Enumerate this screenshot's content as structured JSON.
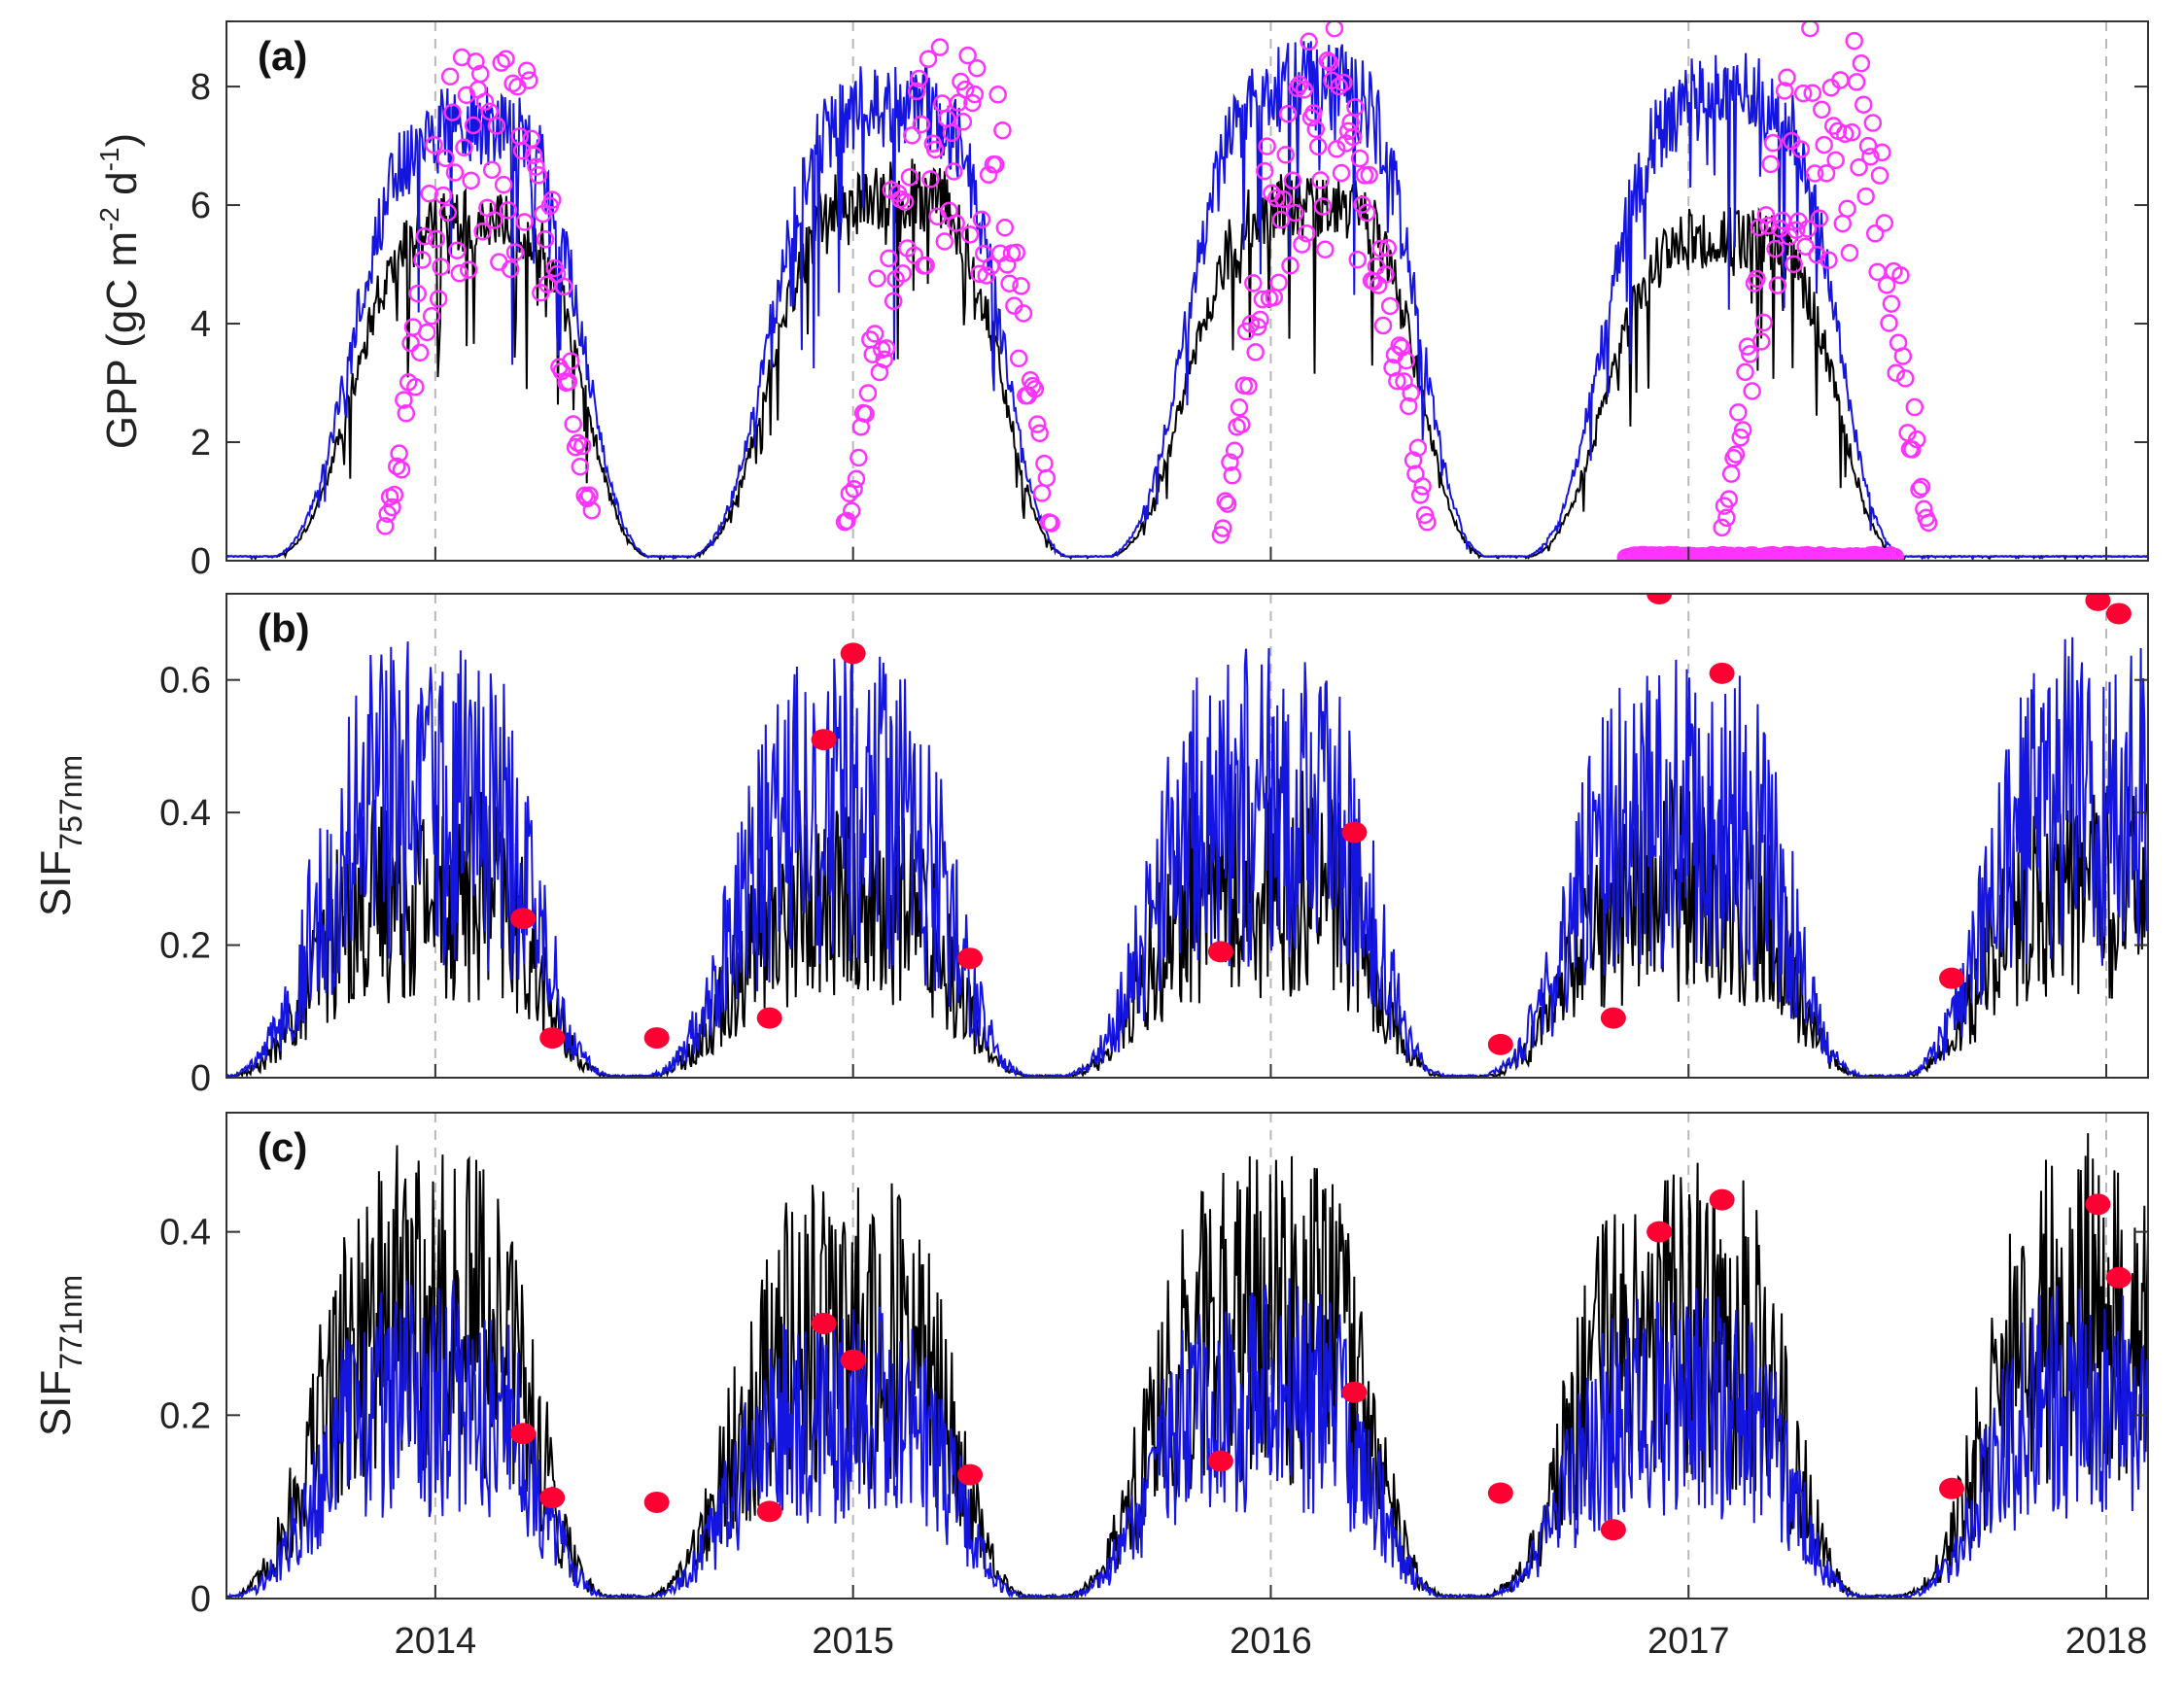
{
  "chart_data": [
    {
      "type": "line",
      "panel": "(a)",
      "ylabel": "GPP (gC m-2 d-1)",
      "ylabel_parts": {
        "base": "GPP (gC m",
        "sup1": "-2",
        "mid": " d",
        "sup2": "-1",
        "end": ")"
      },
      "ylim": [
        0,
        9.1
      ],
      "yticks": [
        0,
        2,
        4,
        6,
        8
      ],
      "ytick_labels": [
        "0",
        "2",
        "4",
        "6",
        "8"
      ],
      "xlim": [
        2013.5,
        2018.1
      ],
      "grid_x": true,
      "series": [
        {
          "name": "black model line",
          "color": "#000000",
          "kind": "line",
          "peaks": [
            [
              2014.1,
              6.3
            ],
            [
              2015.1,
              6.8
            ],
            [
              2016.1,
              6.6
            ],
            [
              2017.1,
              6.0
            ]
          ]
        },
        {
          "name": "blue model line",
          "color": "#1515e0",
          "kind": "line",
          "peaks": [
            [
              2014.1,
              8.0
            ],
            [
              2015.1,
              8.4
            ],
            [
              2016.1,
              8.8
            ],
            [
              2017.1,
              8.6
            ]
          ]
        },
        {
          "name": "observed GPP",
          "color": "#ff33ff",
          "kind": "open-circle",
          "peaks": [
            [
              2014.1,
              8.9
            ],
            [
              2015.2,
              8.9
            ],
            [
              2016.1,
              9.0
            ],
            [
              2017.3,
              9.0
            ]
          ]
        }
      ]
    },
    {
      "type": "line",
      "panel": "(b)",
      "ylabel": "SIF757nm",
      "ylabel_parts": {
        "base": "SIF",
        "sub": "757nm"
      },
      "ylim": [
        0,
        0.73
      ],
      "yticks": [
        0,
        0.2,
        0.4,
        0.6
      ],
      "ytick_labels": [
        "0",
        "0.2",
        "0.4",
        "0.6"
      ],
      "xlim": [
        2013.5,
        2018.1
      ],
      "grid_x": true,
      "series": [
        {
          "name": "black model line",
          "color": "#000000",
          "kind": "line",
          "peaks": [
            [
              2014.0,
              0.45
            ],
            [
              2015.0,
              0.42
            ],
            [
              2016.0,
              0.48
            ],
            [
              2017.0,
              0.45
            ],
            [
              2018.0,
              0.45
            ]
          ]
        },
        {
          "name": "blue model line",
          "color": "#1515e0",
          "kind": "line",
          "peaks": [
            [
              2014.0,
              0.67
            ],
            [
              2015.0,
              0.64
            ],
            [
              2016.0,
              0.66
            ],
            [
              2017.0,
              0.64
            ],
            [
              2018.0,
              0.67
            ]
          ]
        },
        {
          "name": "satellite SIF",
          "color": "#ff0033",
          "kind": "filled-circle",
          "x": [
            2014.21,
            2014.28,
            2014.53,
            2014.8,
            2014.93,
            2015.0,
            2015.28,
            2015.88,
            2016.2,
            2016.55,
            2016.82,
            2016.93,
            2017.08,
            2017.63,
            2017.98,
            2018.03
          ],
          "y": [
            0.24,
            0.06,
            0.06,
            0.09,
            0.51,
            0.64,
            0.18,
            0.19,
            0.37,
            0.05,
            0.09,
            0.73,
            0.61,
            0.15,
            0.72,
            0.7
          ]
        }
      ]
    },
    {
      "type": "line",
      "panel": "(c)",
      "ylabel": "SIF771nm",
      "ylabel_parts": {
        "base": "SIF",
        "sub": "771nm"
      },
      "ylim": [
        0,
        0.53
      ],
      "yticks": [
        0,
        0.2,
        0.4
      ],
      "ytick_labels": [
        "0",
        "0.2",
        "0.4"
      ],
      "xlim": [
        2013.5,
        2018.1
      ],
      "grid_x": true,
      "xticks": [
        2014,
        2015,
        2016,
        2017,
        2018
      ],
      "xtick_labels": [
        "2014",
        "2015",
        "2016",
        "2017",
        "2018"
      ],
      "series": [
        {
          "name": "black model line",
          "color": "#000000",
          "kind": "line",
          "peaks": [
            [
              2014.0,
              0.5
            ],
            [
              2015.0,
              0.46
            ],
            [
              2016.0,
              0.49
            ],
            [
              2017.0,
              0.48
            ],
            [
              2018.0,
              0.51
            ]
          ]
        },
        {
          "name": "blue model line",
          "color": "#1515e0",
          "kind": "line",
          "peaks": [
            [
              2014.0,
              0.35
            ],
            [
              2015.0,
              0.32
            ],
            [
              2016.0,
              0.35
            ],
            [
              2017.0,
              0.34
            ],
            [
              2018.0,
              0.35
            ]
          ]
        },
        {
          "name": "satellite SIF",
          "color": "#ff0033",
          "kind": "filled-circle",
          "x": [
            2014.21,
            2014.28,
            2014.53,
            2014.8,
            2014.93,
            2015.0,
            2015.28,
            2015.88,
            2016.2,
            2016.55,
            2016.82,
            2016.93,
            2017.08,
            2017.63,
            2017.98,
            2018.03
          ],
          "y": [
            0.18,
            0.11,
            0.105,
            0.095,
            0.3,
            0.26,
            0.135,
            0.15,
            0.225,
            0.115,
            0.075,
            0.4,
            0.435,
            0.12,
            0.43,
            0.35
          ]
        }
      ]
    }
  ]
}
